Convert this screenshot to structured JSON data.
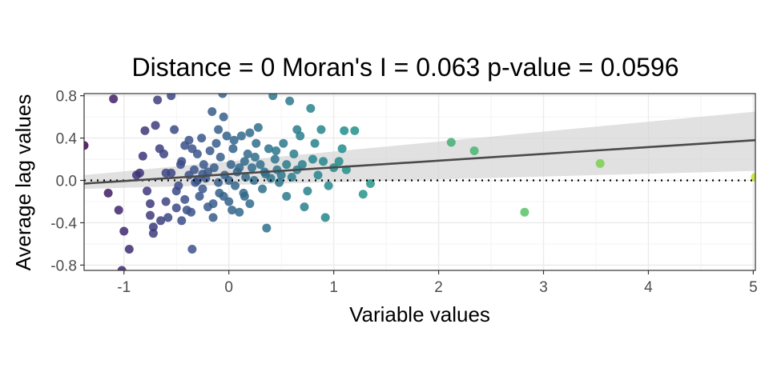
{
  "chart_data": {
    "type": "scatter",
    "title": "Distance = 0   Moran's I = 0.063   p-value = 0.0596",
    "xlabel": "Variable values",
    "ylabel": "Average lag values",
    "xlim": [
      -1.38,
      5.02
    ],
    "ylim": [
      -0.85,
      0.82
    ],
    "x_ticks": [
      -1,
      0,
      1,
      2,
      3,
      4,
      5
    ],
    "y_ticks": [
      -0.8,
      -0.4,
      0.0,
      0.4,
      0.8
    ],
    "x_tick_labels": [
      "-1",
      "0",
      "1",
      "2",
      "3",
      "4",
      "5"
    ],
    "y_tick_labels": [
      "-0.8",
      "-0.4",
      "0.0",
      "0.4",
      "0.8"
    ],
    "grid": true,
    "colormap": [
      "#440154",
      "#3b528b",
      "#21908c",
      "#5dc863",
      "#c8e020"
    ],
    "reference_line_y": 0,
    "regression": {
      "x": [
        -1.38,
        5.02
      ],
      "y": [
        -0.03,
        0.38
      ],
      "ci_lower": [
        -0.08,
        0.09
      ],
      "ci_upper": [
        0.05,
        0.65
      ]
    },
    "points": [
      [
        -1.1,
        0.77
      ],
      [
        -1.38,
        0.33
      ],
      [
        -1.15,
        -0.12
      ],
      [
        -1.05,
        -0.28
      ],
      [
        -1.0,
        -0.48
      ],
      [
        -0.95,
        -0.65
      ],
      [
        -1.02,
        -0.85
      ],
      [
        -0.88,
        0.05
      ],
      [
        -0.85,
        0.07
      ],
      [
        -0.82,
        0.23
      ],
      [
        -0.8,
        0.47
      ],
      [
        -0.78,
        -0.1
      ],
      [
        -0.75,
        -0.22
      ],
      [
        -0.75,
        -0.33
      ],
      [
        -0.72,
        -0.44
      ],
      [
        -0.72,
        -0.5
      ],
      [
        -0.7,
        0.52
      ],
      [
        -0.68,
        0.76
      ],
      [
        -0.66,
        0.3
      ],
      [
        -0.65,
        -0.38
      ],
      [
        -0.62,
        0.25
      ],
      [
        -0.6,
        -0.2
      ],
      [
        -0.58,
        -0.35
      ],
      [
        -0.55,
        0.8
      ],
      [
        -0.55,
        0.07
      ],
      [
        -0.52,
        0.48
      ],
      [
        -0.5,
        -0.26
      ],
      [
        -0.5,
        -0.1
      ],
      [
        -0.48,
        -0.05
      ],
      [
        -0.46,
        0.15
      ],
      [
        -0.45,
        -0.38
      ],
      [
        -0.42,
        0.33
      ],
      [
        -0.42,
        -0.18
      ],
      [
        -0.4,
        -0.28
      ],
      [
        -0.38,
        0.05
      ],
      [
        -0.38,
        0.38
      ],
      [
        -0.36,
        -0.3
      ],
      [
        -0.35,
        -0.65
      ],
      [
        -0.33,
        0.1
      ],
      [
        -0.32,
        -0.02
      ],
      [
        -0.3,
        0.25
      ],
      [
        -0.28,
        -0.15
      ],
      [
        -0.26,
        0.4
      ],
      [
        -0.25,
        -0.08
      ],
      [
        -0.24,
        0.15
      ],
      [
        -0.22,
        0.02
      ],
      [
        -0.2,
        -0.25
      ],
      [
        -0.2,
        0.08
      ],
      [
        -0.18,
        0.28
      ],
      [
        -0.16,
        0.65
      ],
      [
        -0.15,
        -0.35
      ],
      [
        -0.14,
        0.12
      ],
      [
        -0.12,
        0.35
      ],
      [
        -0.1,
        -0.02
      ],
      [
        -0.09,
        -0.12
      ],
      [
        -0.08,
        0.22
      ],
      [
        -0.06,
        0.82
      ],
      [
        -0.05,
        0.6
      ],
      [
        -0.04,
        0.05
      ],
      [
        -0.02,
        0.42
      ],
      [
        0.0,
        -0.2
      ],
      [
        0.02,
        0.15
      ],
      [
        0.03,
        -0.28
      ],
      [
        0.04,
        0.3
      ],
      [
        0.06,
        -0.05
      ],
      [
        0.08,
        0.08
      ],
      [
        0.1,
        -0.3
      ],
      [
        0.12,
        0.42
      ],
      [
        0.14,
        -0.12
      ],
      [
        0.15,
        0.18
      ],
      [
        0.16,
        0.03
      ],
      [
        0.18,
        0.25
      ],
      [
        0.2,
        -0.22
      ],
      [
        0.22,
        0.12
      ],
      [
        0.24,
        0.0
      ],
      [
        0.26,
        0.35
      ],
      [
        0.28,
        0.5
      ],
      [
        0.3,
        0.15
      ],
      [
        0.32,
        -0.08
      ],
      [
        0.34,
        0.08
      ],
      [
        0.36,
        -0.45
      ],
      [
        0.38,
        0.3
      ],
      [
        0.4,
        0.02
      ],
      [
        0.42,
        0.8
      ],
      [
        0.44,
        0.2
      ],
      [
        0.46,
        0.1
      ],
      [
        0.48,
        -0.02
      ],
      [
        0.5,
        0.05
      ],
      [
        0.52,
        0.35
      ],
      [
        0.55,
        0.15
      ],
      [
        0.58,
        0.75
      ],
      [
        0.6,
        0.03
      ],
      [
        0.62,
        0.25
      ],
      [
        0.65,
        0.48
      ],
      [
        0.68,
        0.42
      ],
      [
        0.7,
        0.15
      ],
      [
        0.72,
        -0.25
      ],
      [
        0.75,
        -0.1
      ],
      [
        0.78,
        0.68
      ],
      [
        0.8,
        0.2
      ],
      [
        0.82,
        0.35
      ],
      [
        0.85,
        0.05
      ],
      [
        0.88,
        0.48
      ],
      [
        0.9,
        0.18
      ],
      [
        0.92,
        -0.35
      ],
      [
        0.95,
        -0.05
      ],
      [
        1.0,
        0.12
      ],
      [
        1.05,
        0.18
      ],
      [
        1.08,
        0.3
      ],
      [
        1.1,
        0.47
      ],
      [
        1.12,
        0.1
      ],
      [
        1.2,
        0.47
      ],
      [
        1.28,
        -0.13
      ],
      [
        1.35,
        -0.03
      ],
      [
        0.55,
        -0.15
      ],
      [
        0.65,
        0.1
      ],
      [
        -0.3,
        0.0
      ],
      [
        0.05,
        0.38
      ],
      [
        -0.1,
        0.48
      ],
      [
        0.25,
        0.22
      ],
      [
        -0.25,
        0.06
      ],
      [
        0.15,
        -0.15
      ],
      [
        -0.45,
        0.18
      ],
      [
        -0.6,
        0.07
      ],
      [
        0.35,
        0.06
      ],
      [
        -0.15,
        -0.22
      ],
      [
        0.0,
        0.0
      ],
      [
        0.1,
        0.12
      ],
      [
        -0.35,
        0.3
      ],
      [
        0.45,
        0.28
      ],
      [
        -0.05,
        -0.15
      ],
      [
        0.2,
        0.45
      ],
      [
        2.12,
        0.36
      ],
      [
        2.34,
        0.28
      ],
      [
        2.82,
        -0.3
      ],
      [
        3.54,
        0.16
      ],
      [
        5.02,
        0.03
      ]
    ]
  }
}
